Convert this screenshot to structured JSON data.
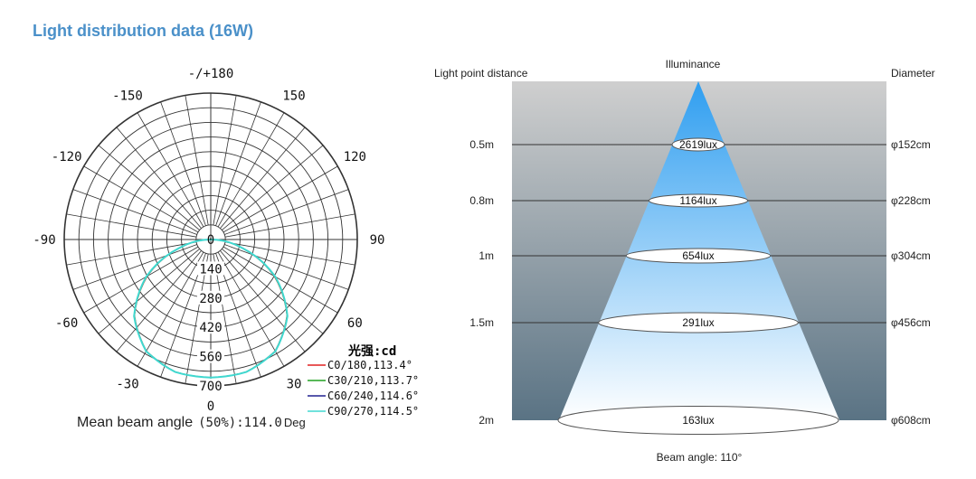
{
  "title": "Light distribution data (16W)",
  "polar": {
    "angle_labels": [
      {
        "text": "-/+180",
        "deg": 180
      },
      {
        "text": "150",
        "deg": 150
      },
      {
        "text": "-150",
        "deg": -150
      },
      {
        "text": "120",
        "deg": 120
      },
      {
        "text": "-120",
        "deg": -120
      },
      {
        "text": "90",
        "deg": 90
      },
      {
        "text": "-90",
        "deg": -90
      },
      {
        "text": "60",
        "deg": 60
      },
      {
        "text": "-60",
        "deg": -60
      },
      {
        "text": "30",
        "deg": 30
      },
      {
        "text": "-30",
        "deg": -30
      },
      {
        "text": "0",
        "deg": 0
      }
    ],
    "radial_labels": [
      "0",
      "140",
      "280",
      "420",
      "560",
      "700"
    ],
    "unit_label": "光强:cd",
    "legend": [
      {
        "label": "C0/180,113.4°",
        "color": "#e02020"
      },
      {
        "label": "C30/210,113.7°",
        "color": "#20a020"
      },
      {
        "label": "C60/240,114.6°",
        "color": "#202090"
      },
      {
        "label": "C90/270,114.5°",
        "color": "#40d8d0"
      }
    ],
    "mean_beam_label": "Mean beam angle",
    "mean_beam_pct": "(50%)",
    "mean_beam_value": ":114.0",
    "mean_beam_unit": "Deg"
  },
  "chart_data": {
    "type": "polar",
    "r_max": 700,
    "r_ticks": [
      140,
      280,
      420,
      560,
      700
    ],
    "angle_ticks": [
      0,
      30,
      60,
      90,
      120,
      150,
      180,
      -150,
      -120,
      -90,
      -60,
      -30
    ],
    "series": [
      {
        "name": "C0/180",
        "beam_angle": 113.4,
        "color": "#e02020",
        "angles": [
          -90,
          -75,
          -60,
          -45,
          -30,
          -15,
          0,
          15,
          30,
          45,
          60,
          75,
          90
        ],
        "values": [
          0,
          150,
          350,
          515,
          615,
          655,
          660,
          655,
          615,
          515,
          350,
          150,
          0
        ]
      },
      {
        "name": "C30/210",
        "beam_angle": 113.7,
        "color": "#20a020",
        "angles": [
          -90,
          -75,
          -60,
          -45,
          -30,
          -15,
          0,
          15,
          30,
          45,
          60,
          75,
          90
        ],
        "values": [
          0,
          152,
          352,
          516,
          616,
          655,
          660,
          655,
          616,
          516,
          352,
          152,
          0
        ]
      },
      {
        "name": "C60/240",
        "beam_angle": 114.6,
        "color": "#202090",
        "angles": [
          -90,
          -75,
          -60,
          -45,
          -30,
          -15,
          0,
          15,
          30,
          45,
          60,
          75,
          90
        ],
        "values": [
          0,
          154,
          355,
          518,
          617,
          656,
          660,
          656,
          617,
          518,
          355,
          154,
          0
        ]
      },
      {
        "name": "C90/270",
        "beam_angle": 114.5,
        "color": "#40d8d0",
        "angles": [
          -90,
          -75,
          -60,
          -45,
          -30,
          -15,
          0,
          15,
          30,
          45,
          60,
          75,
          90
        ],
        "values": [
          0,
          155,
          356,
          518,
          617,
          656,
          660,
          656,
          617,
          518,
          356,
          155,
          0
        ]
      }
    ]
  },
  "illuminance": {
    "header_left": "Light point distance",
    "header_center": "Illuminance",
    "header_right": "Diameter",
    "beam_angle_label": "Beam angle: 110°",
    "rows": [
      {
        "distance": "0.5m",
        "lux": "2619lux",
        "diameter": "φ152cm"
      },
      {
        "distance": "0.8m",
        "lux": "1164lux",
        "diameter": "φ228cm"
      },
      {
        "distance": "1m",
        "lux": "654lux",
        "diameter": "φ304cm"
      },
      {
        "distance": "1.5m",
        "lux": "291lux",
        "diameter": "φ456cm"
      },
      {
        "distance": "2m",
        "lux": "163lux",
        "diameter": "φ608cm"
      }
    ],
    "colors": {
      "bg_top": "#cfcfcf",
      "bg_bottom": "#5a7384",
      "cone_top": "#2f9ef0",
      "cone_bottom": "#ffffff"
    }
  }
}
